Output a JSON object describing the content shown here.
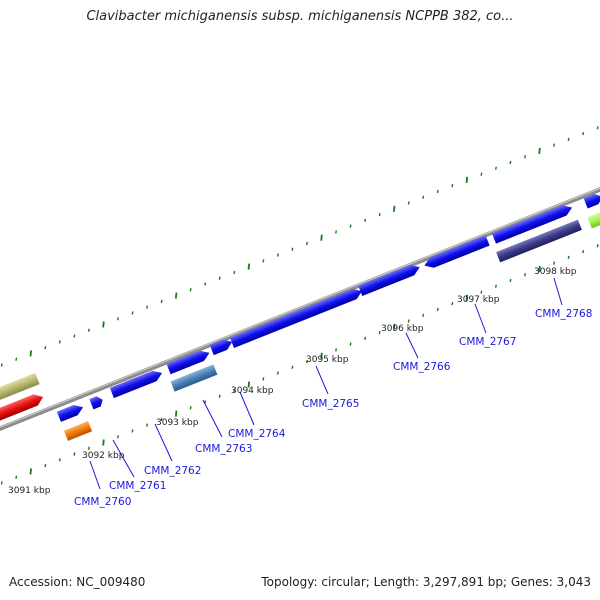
{
  "title": "Clavibacter michiganensis subsp. michiganensis NCPPB 382, co...",
  "footer": {
    "accession": "Accession: NC_009480",
    "summary": "Topology: circular; Length: 3,297,891 bp; Genes: 3,043"
  },
  "ruler_labels": [
    "3091 kbp",
    "3092 kbp",
    "3093 kbp",
    "3094 kbp",
    "3095 kbp",
    "3096 kbp",
    "3097 kbp",
    "3098 kbp"
  ],
  "gene_labels": [
    "CMM_2760",
    "CMM_2761",
    "CMM_2762",
    "CMM_2763",
    "CMM_2764",
    "CMM_2765",
    "CMM_2766",
    "CMM_2767",
    "CMM_2768"
  ],
  "colors": {
    "backbone": "#8c8c8c",
    "gene_forward": "#1010e8",
    "gene_steelblue": "#4a80b8",
    "gene_darkpurple": "#3a3a88",
    "gene_orange": "#f07a0a",
    "gene_red": "#e81010",
    "gene_khaki": "#b8b870",
    "gene_lime": "#a8f050",
    "tick": "#1a7a1a",
    "label": "#1a1adb"
  }
}
